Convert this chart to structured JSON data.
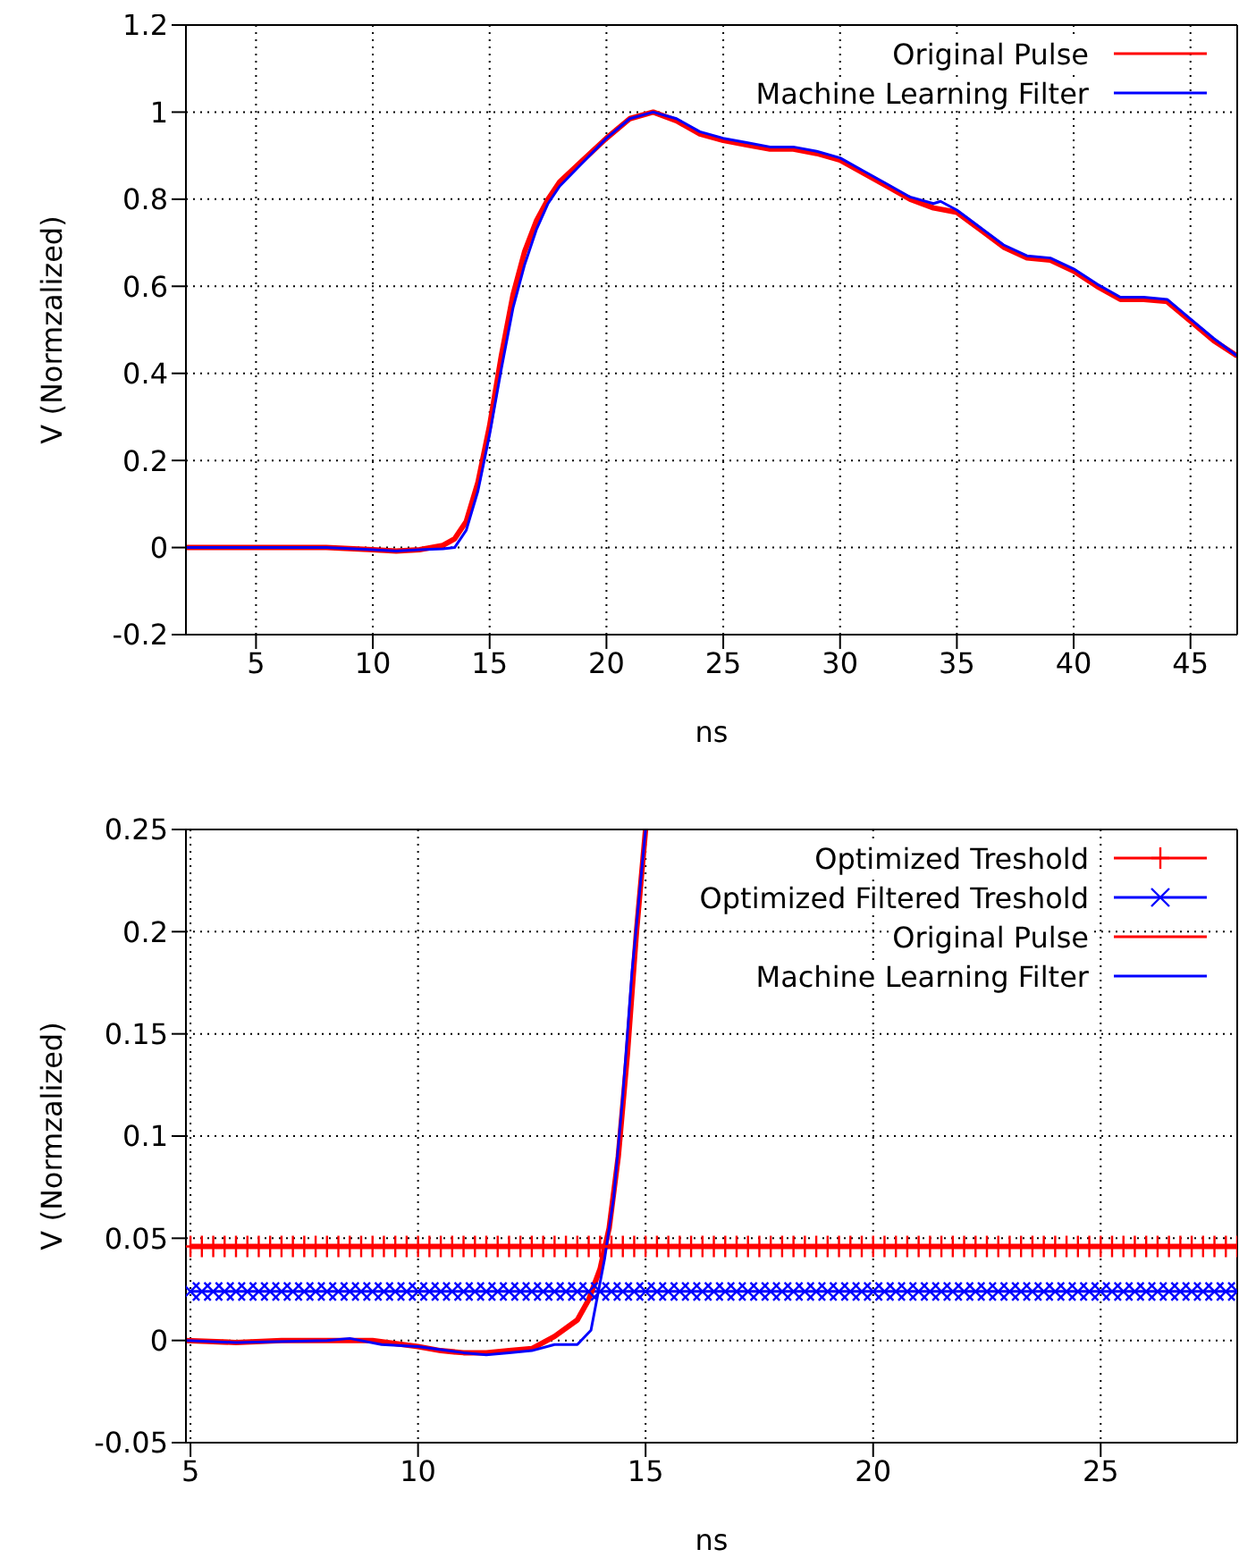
{
  "chart_data": [
    {
      "type": "line",
      "xlabel": "ns",
      "ylabel": "V (Normzalized)",
      "xlim": [
        2,
        47
      ],
      "ylim": [
        -0.2,
        1.2
      ],
      "xticks": [
        5,
        10,
        15,
        20,
        25,
        30,
        35,
        40,
        45
      ],
      "yticks": [
        -0.2,
        0,
        0.2,
        0.4,
        0.6,
        0.8,
        1,
        1.2
      ],
      "grid": true,
      "legend": "top right",
      "line_style": "solid",
      "marker": "none",
      "series": [
        {
          "name": "Original Pulse",
          "color": "#ff0000",
          "x": [
            2,
            5,
            8,
            10,
            11,
            12,
            13,
            13.5,
            14,
            14.5,
            15,
            15.5,
            16,
            16.5,
            17,
            17.5,
            18,
            19,
            20,
            21,
            22,
            23,
            24,
            25,
            26,
            27,
            28,
            29,
            30,
            31,
            32,
            33,
            34,
            35,
            36,
            37,
            38,
            39,
            40,
            41,
            42,
            43,
            44,
            45,
            46,
            47
          ],
          "values": [
            0,
            0,
            0,
            -0.005,
            -0.008,
            -0.005,
            0.005,
            0.02,
            0.06,
            0.15,
            0.28,
            0.44,
            0.58,
            0.68,
            0.75,
            0.8,
            0.84,
            0.89,
            0.94,
            0.985,
            1,
            0.98,
            0.95,
            0.935,
            0.925,
            0.915,
            0.915,
            0.905,
            0.89,
            0.86,
            0.83,
            0.8,
            0.78,
            0.77,
            0.73,
            0.69,
            0.665,
            0.66,
            0.635,
            0.6,
            0.57,
            0.57,
            0.565,
            0.52,
            0.475,
            0.44
          ]
        },
        {
          "name": "Machine Learning Filter",
          "color": "#0000ff",
          "x": [
            2,
            5,
            8,
            10,
            11,
            12,
            13,
            13.5,
            14,
            14.5,
            15,
            15.5,
            16,
            16.5,
            17,
            17.5,
            18,
            19,
            20,
            21,
            22,
            23,
            24,
            25,
            26,
            27,
            28,
            29,
            30,
            31,
            32,
            33,
            34,
            34.3,
            35,
            36,
            37,
            38,
            39,
            40,
            41,
            42,
            43,
            44,
            45,
            46,
            47
          ],
          "values": [
            0,
            0,
            0,
            -0.005,
            -0.008,
            -0.005,
            -0.003,
            0,
            0.04,
            0.13,
            0.26,
            0.41,
            0.55,
            0.65,
            0.73,
            0.79,
            0.83,
            0.885,
            0.94,
            0.985,
            1,
            0.985,
            0.955,
            0.94,
            0.93,
            0.92,
            0.92,
            0.91,
            0.895,
            0.865,
            0.835,
            0.805,
            0.79,
            0.795,
            0.775,
            0.735,
            0.695,
            0.67,
            0.665,
            0.64,
            0.605,
            0.575,
            0.575,
            0.57,
            0.525,
            0.48,
            0.44
          ]
        }
      ]
    },
    {
      "type": "line",
      "xlabel": "ns",
      "ylabel": "V (Normzalized)",
      "xlim": [
        4.9,
        28
      ],
      "ylim": [
        -0.05,
        0.25
      ],
      "xticks": [
        5,
        10,
        15,
        20,
        25
      ],
      "yticks": [
        -0.05,
        0,
        0.05,
        0.1,
        0.15,
        0.2,
        0.25
      ],
      "grid": true,
      "legend": "top right",
      "line_style": "solid",
      "series": [
        {
          "name": "Optimized Treshold",
          "color": "#ff0000",
          "marker": "plus",
          "x": [
            5,
            5.25,
            5.5,
            5.75,
            6,
            6.25,
            6.5,
            6.75,
            7,
            7.25,
            7.5,
            7.75,
            8,
            8.25,
            8.5,
            8.75,
            9,
            9.25,
            9.5,
            9.75,
            10,
            10.25,
            10.5,
            10.75,
            11,
            11.25,
            11.5,
            11.75,
            12,
            12.25,
            12.5,
            12.75,
            13,
            13.25,
            13.5,
            13.75,
            14,
            14.25,
            14.5,
            14.75,
            15,
            15.25,
            15.5,
            15.75,
            16,
            16.25,
            16.5,
            16.75,
            17,
            17.25,
            17.5,
            17.75,
            18,
            18.25,
            18.5,
            18.75,
            19,
            19.25,
            19.5,
            19.75,
            20,
            20.25,
            20.5,
            20.75,
            21,
            21.25,
            21.5,
            21.75,
            22,
            22.25,
            22.5,
            22.75,
            23,
            23.25,
            23.5,
            23.75,
            24,
            24.25,
            24.5,
            24.75,
            25,
            25.25,
            25.5,
            25.75,
            26,
            26.25,
            26.5,
            26.75,
            27,
            27.25,
            27.5,
            27.75,
            28
          ],
          "values": [
            0.046,
            0.046,
            0.046,
            0.046,
            0.046,
            0.046,
            0.046,
            0.046,
            0.046,
            0.046,
            0.046,
            0.046,
            0.046,
            0.046,
            0.046,
            0.046,
            0.046,
            0.046,
            0.046,
            0.046,
            0.046,
            0.046,
            0.046,
            0.046,
            0.046,
            0.046,
            0.046,
            0.046,
            0.046,
            0.046,
            0.046,
            0.046,
            0.046,
            0.046,
            0.046,
            0.046,
            0.046,
            0.046,
            0.046,
            0.046,
            0.046,
            0.046,
            0.046,
            0.046,
            0.046,
            0.046,
            0.046,
            0.046,
            0.046,
            0.046,
            0.046,
            0.046,
            0.046,
            0.046,
            0.046,
            0.046,
            0.046,
            0.046,
            0.046,
            0.046,
            0.046,
            0.046,
            0.046,
            0.046,
            0.046,
            0.046,
            0.046,
            0.046,
            0.046,
            0.046,
            0.046,
            0.046,
            0.046,
            0.046,
            0.046,
            0.046,
            0.046,
            0.046,
            0.046,
            0.046,
            0.046,
            0.046,
            0.046,
            0.046,
            0.046,
            0.046,
            0.046,
            0.046,
            0.046,
            0.046,
            0.046,
            0.046,
            0.046
          ]
        },
        {
          "name": "Optimized Filtered Treshold",
          "color": "#0000ff",
          "marker": "cross",
          "x": [
            5,
            5.25,
            5.5,
            5.75,
            6,
            6.25,
            6.5,
            6.75,
            7,
            7.25,
            7.5,
            7.75,
            8,
            8.25,
            8.5,
            8.75,
            9,
            9.25,
            9.5,
            9.75,
            10,
            10.25,
            10.5,
            10.75,
            11,
            11.25,
            11.5,
            11.75,
            12,
            12.25,
            12.5,
            12.75,
            13,
            13.25,
            13.5,
            13.75,
            14,
            14.25,
            14.5,
            14.75,
            15,
            15.25,
            15.5,
            15.75,
            16,
            16.25,
            16.5,
            16.75,
            17,
            17.25,
            17.5,
            17.75,
            18,
            18.25,
            18.5,
            18.75,
            19,
            19.25,
            19.5,
            19.75,
            20,
            20.25,
            20.5,
            20.75,
            21,
            21.25,
            21.5,
            21.75,
            22,
            22.25,
            22.5,
            22.75,
            23,
            23.25,
            23.5,
            23.75,
            24,
            24.25,
            24.5,
            24.75,
            25,
            25.25,
            25.5,
            25.75,
            26,
            26.25,
            26.5,
            26.75,
            27,
            27.25,
            27.5,
            27.75,
            28
          ],
          "values": [
            0.024,
            0.024,
            0.024,
            0.024,
            0.024,
            0.024,
            0.024,
            0.024,
            0.024,
            0.024,
            0.024,
            0.024,
            0.024,
            0.024,
            0.024,
            0.024,
            0.024,
            0.024,
            0.024,
            0.024,
            0.024,
            0.024,
            0.024,
            0.024,
            0.024,
            0.024,
            0.024,
            0.024,
            0.024,
            0.024,
            0.024,
            0.024,
            0.024,
            0.024,
            0.024,
            0.024,
            0.024,
            0.024,
            0.024,
            0.024,
            0.024,
            0.024,
            0.024,
            0.024,
            0.024,
            0.024,
            0.024,
            0.024,
            0.024,
            0.024,
            0.024,
            0.024,
            0.024,
            0.024,
            0.024,
            0.024,
            0.024,
            0.024,
            0.024,
            0.024,
            0.024,
            0.024,
            0.024,
            0.024,
            0.024,
            0.024,
            0.024,
            0.024,
            0.024,
            0.024,
            0.024,
            0.024,
            0.024,
            0.024,
            0.024,
            0.024,
            0.024,
            0.024,
            0.024,
            0.024,
            0.024,
            0.024,
            0.024,
            0.024,
            0.024,
            0.024,
            0.024,
            0.024,
            0.024,
            0.024,
            0.024,
            0.024,
            0.024
          ]
        },
        {
          "name": "Original Pulse",
          "color": "#ff0000",
          "marker": "none",
          "x": [
            4.9,
            6,
            7,
            8,
            9,
            10,
            10.5,
            11,
            11.5,
            12,
            12.5,
            13,
            13.5,
            13.75,
            14,
            14.2,
            14.4,
            14.6,
            14.8,
            15
          ],
          "values": [
            0,
            -0.001,
            0,
            0,
            0,
            -0.003,
            -0.005,
            -0.006,
            -0.006,
            -0.005,
            -0.004,
            0.002,
            0.01,
            0.02,
            0.035,
            0.055,
            0.09,
            0.14,
            0.2,
            0.25
          ]
        },
        {
          "name": "Machine Learning Filter",
          "color": "#0000ff",
          "marker": "none",
          "x": [
            4.9,
            6,
            8,
            8.5,
            9.2,
            10,
            11,
            11.5,
            12,
            12.5,
            13,
            13.5,
            13.8,
            14.1,
            14.3,
            14.5,
            14.7,
            15
          ],
          "values": [
            0,
            -0.001,
            0,
            0.001,
            -0.002,
            -0.003,
            -0.006,
            -0.007,
            -0.006,
            -0.005,
            -0.002,
            -0.002,
            0.005,
            0.04,
            0.07,
            0.12,
            0.18,
            0.25
          ]
        }
      ]
    }
  ]
}
